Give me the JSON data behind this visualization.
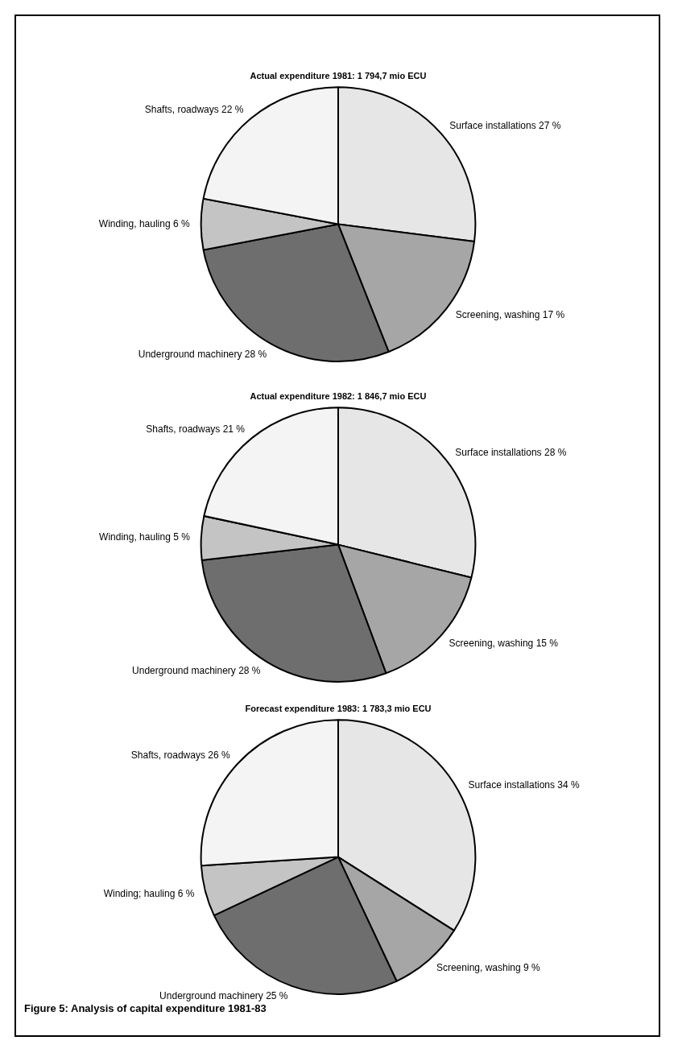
{
  "chart_data": [
    {
      "type": "pie",
      "title": "Actual expenditure 1981: 1 794,7 mio ECU",
      "categories": [
        "Surface installations",
        "Screening, washing",
        "Underground machinery",
        "Winding, hauling",
        "Shafts, roadways"
      ],
      "values": [
        27,
        17,
        28,
        6,
        22
      ],
      "value_labels": [
        "27 %",
        "17 %",
        "28 %",
        "6 %",
        "22 %"
      ],
      "colors": [
        "#e6e6e6",
        "#a6a6a6",
        "#6e6e6e",
        "#c4c4c4",
        "#f4f4f4"
      ]
    },
    {
      "type": "pie",
      "title": "Actual expenditure 1982: 1 846,7 mio ECU",
      "categories": [
        "Surface installations",
        "Screening, washing",
        "Underground machinery",
        "Winding, hauling",
        "Shafts, roadways"
      ],
      "values": [
        28,
        15,
        28,
        5,
        21
      ],
      "value_labels": [
        "28 %",
        "15 %",
        "28 %",
        "5 %",
        "21 %"
      ],
      "colors": [
        "#e6e6e6",
        "#a6a6a6",
        "#6e6e6e",
        "#c4c4c4",
        "#f4f4f4"
      ]
    },
    {
      "type": "pie",
      "title": "Forecast expenditure 1983: 1 783,3 mio ECU",
      "categories": [
        "Surface installations",
        "Screening, washing",
        "Underground machinery",
        "Winding; hauling",
        "Shafts, roadways"
      ],
      "values": [
        34,
        9,
        25,
        6,
        26
      ],
      "value_labels": [
        "34 %",
        "9 %",
        "25 %",
        "6 %",
        "26 %"
      ],
      "colors": [
        "#e6e6e6",
        "#a6a6a6",
        "#6e6e6e",
        "#c4c4c4",
        "#f4f4f4"
      ],
      "annotations": [
        "Figure 5:  Analysis of capital expenditure 1981-83"
      ]
    }
  ]
}
